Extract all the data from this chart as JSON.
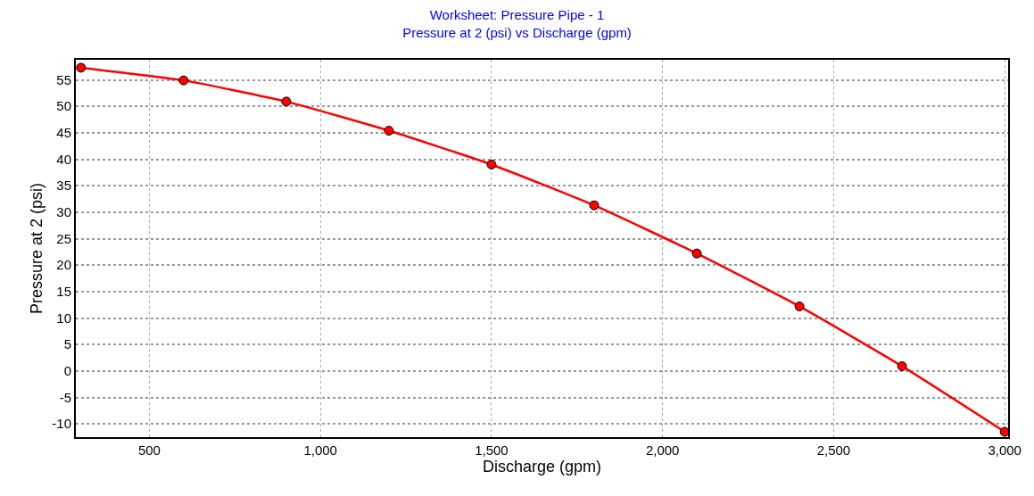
{
  "chart_data": {
    "type": "line",
    "title": "Worksheet: Pressure Pipe - 1",
    "subtitle": "Pressure at 2 (psi) vs Discharge (gpm)",
    "xlabel": "Discharge (gpm)",
    "ylabel": "Pressure at 2 (psi)",
    "x": [
      300,
      600,
      900,
      1200,
      1500,
      1800,
      2100,
      2400,
      2700,
      3000
    ],
    "series": [
      {
        "color": "#ff0000",
        "values": [
          57.3,
          54.9,
          50.9,
          45.4,
          39.0,
          31.3,
          22.2,
          12.2,
          0.9,
          -11.5
        ]
      }
    ],
    "xlim": [
      285,
      3010
    ],
    "xticks": [
      {
        "value": 500,
        "label": "500"
      },
      {
        "value": 1000,
        "label": "1,000"
      },
      {
        "value": 1500,
        "label": "1,500"
      },
      {
        "value": 2000,
        "label": "2,000"
      },
      {
        "value": 2500,
        "label": "2,500"
      },
      {
        "value": 3000,
        "label": "3,000"
      }
    ],
    "ylim": [
      -12.5,
      58.8
    ],
    "yticks": [
      -10,
      -5,
      0,
      5,
      10,
      15,
      20,
      25,
      30,
      35,
      40,
      45,
      50,
      55
    ],
    "grid": true,
    "marker": "circle",
    "line_style": "solid"
  }
}
